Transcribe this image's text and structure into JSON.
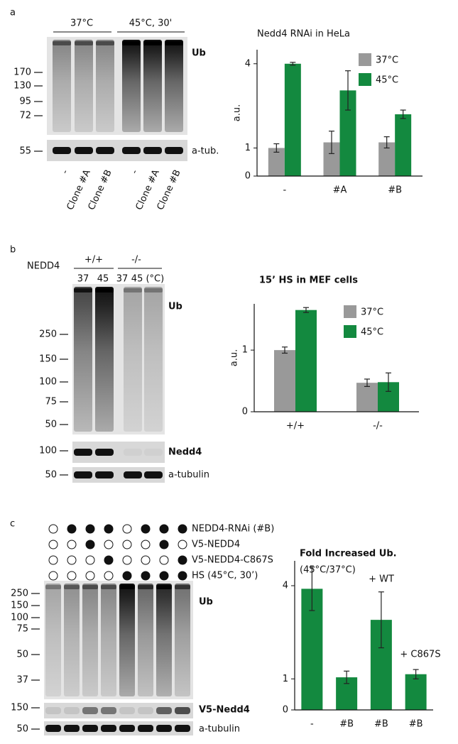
{
  "panels": [
    {
      "letter": "a",
      "groups": [
        "37°C",
        "45°C, 30'"
      ],
      "blots": [
        {
          "label": "Ub",
          "markers": [
            170,
            130,
            95,
            72
          ]
        },
        {
          "label": "a-tub.",
          "markers": [
            55
          ]
        }
      ],
      "lanes": [
        "-",
        "Clone #A",
        "Clone #B",
        "-",
        "Clone #A",
        "Clone #B"
      ]
    },
    {
      "letter": "b",
      "row_label": "NEDD4",
      "groups": [
        "+/+",
        "-/-"
      ],
      "lanes": [
        "37",
        "45",
        "37",
        "45 (°C)"
      ],
      "blots": [
        {
          "label": "Ub",
          "markers": [
            250,
            150,
            100,
            75,
            50
          ]
        },
        {
          "label": "Nedd4",
          "markers": [
            100
          ]
        },
        {
          "label": "a-tubulin",
          "markers": [
            50
          ]
        }
      ]
    },
    {
      "letter": "c",
      "conditions": [
        {
          "label": "NEDD4-RNAi (#B)",
          "lanes": [
            false,
            true,
            true,
            true,
            false,
            true,
            true,
            true
          ]
        },
        {
          "label": "V5-NEDD4",
          "lanes": [
            false,
            false,
            true,
            false,
            false,
            false,
            true,
            false
          ]
        },
        {
          "label": "V5-NEDD4-C867S",
          "lanes": [
            false,
            false,
            false,
            true,
            false,
            false,
            false,
            true
          ]
        },
        {
          "label": "HS (45°C, 30’)",
          "lanes": [
            false,
            false,
            false,
            false,
            true,
            true,
            true,
            true
          ]
        }
      ],
      "blots": [
        {
          "label": "Ub",
          "markers": [
            250,
            150,
            100,
            75,
            50,
            37
          ]
        },
        {
          "label": "V5-Nedd4",
          "markers": [
            150
          ]
        },
        {
          "label": "a-tubulin",
          "markers": [
            50
          ]
        }
      ]
    }
  ],
  "chart_data": [
    {
      "type": "bar",
      "title": "Nedd4 RNAi  in HeLa",
      "y_label": "a.u.",
      "categories": [
        "-",
        "#A",
        "#B"
      ],
      "series": [
        {
          "name": "37°C",
          "color": "#999999",
          "values": [
            1.0,
            1.2,
            1.2
          ],
          "errors": [
            0.15,
            0.4,
            0.2
          ]
        },
        {
          "name": "45°C",
          "color": "#13893f",
          "values": [
            4.0,
            3.05,
            2.2
          ],
          "errors": [
            0.05,
            0.7,
            0.15
          ]
        }
      ],
      "ylim": [
        0,
        4.5
      ],
      "yticks": [
        0,
        1,
        4
      ],
      "legend": "upper right"
    },
    {
      "type": "bar",
      "title": "15’ HS in MEF cells",
      "y_label": "a.u.",
      "categories": [
        "+/+",
        "-/-"
      ],
      "series": [
        {
          "name": "37°C",
          "color": "#999999",
          "values": [
            1.0,
            0.47
          ],
          "errors": [
            0.05,
            0.06
          ]
        },
        {
          "name": "45°C",
          "color": "#13893f",
          "values": [
            1.65,
            0.48
          ],
          "errors": [
            0.04,
            0.15
          ]
        }
      ],
      "ylim": [
        0,
        1.75
      ],
      "yticks": [
        0,
        1
      ],
      "legend": "upper right"
    },
    {
      "type": "bar",
      "title": "Fold Increased Ub.",
      "subtitle": "(45°C/37°C)",
      "categories": [
        "-",
        "#B",
        "#B",
        "#B"
      ],
      "series": [
        {
          "color": "#13893f",
          "values": [
            3.9,
            1.05,
            2.9,
            1.15
          ],
          "errors": [
            0.7,
            0.2,
            0.9,
            0.15
          ]
        }
      ],
      "annotations": [
        "+ WT",
        "+ C867S"
      ],
      "ylim": [
        0,
        4.8
      ],
      "yticks": [
        0,
        1,
        4
      ]
    }
  ]
}
